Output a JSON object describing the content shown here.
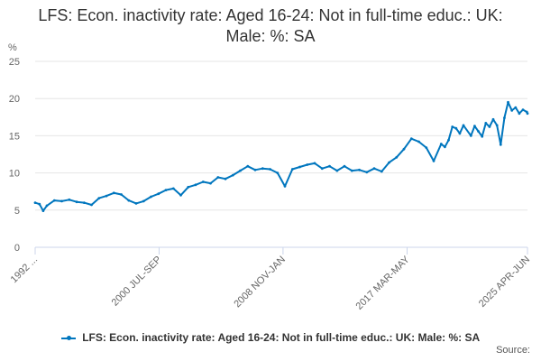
{
  "chart_data": {
    "type": "line",
    "title": "LFS: Econ. inactivity rate: Aged 16-24: Not in full-time educ.: UK: Male: %: SA",
    "ylabel": "%",
    "ylim": [
      0,
      25
    ],
    "y_ticks": [
      "0",
      "5",
      "10",
      "15",
      "20",
      "25"
    ],
    "x_tick_labels": [
      "1992 ...",
      "2000 JUL-SEP",
      "2008 NOV-JAN",
      "2017 MAR-MAY",
      "2025 APR-JUN"
    ],
    "grid": true,
    "legend_position": "bottom",
    "credits": "Source:",
    "series": [
      {
        "name": "LFS: Econ. inactivity rate: Aged 16-24: Not in full-time educ.: UK: Male: %: SA",
        "color": "#0076be",
        "x": [
          1992.21,
          1992.5,
          1992.75,
          1993.0,
          1993.5,
          1994.0,
          1994.5,
          1995.0,
          1995.5,
          1996.0,
          1996.5,
          1997.0,
          1997.5,
          1998.0,
          1998.5,
          1999.0,
          1999.5,
          2000.0,
          2000.5,
          2001.0,
          2001.5,
          2002.0,
          2002.5,
          2003.0,
          2003.5,
          2004.0,
          2004.5,
          2005.0,
          2005.5,
          2006.0,
          2006.5,
          2007.0,
          2007.5,
          2008.0,
          2008.5,
          2009.0,
          2009.5,
          2010.0,
          2010.5,
          2011.0,
          2011.5,
          2012.0,
          2012.5,
          2013.0,
          2013.5,
          2014.0,
          2014.5,
          2015.0,
          2015.5,
          2016.0,
          2016.5,
          2017.0,
          2017.5,
          2018.0,
          2018.5,
          2019.0,
          2019.5,
          2019.75,
          2020.0,
          2020.25,
          2020.5,
          2020.75,
          2021.0,
          2021.5,
          2021.75,
          2022.0,
          2022.25,
          2022.5,
          2022.75,
          2023.0,
          2023.25,
          2023.5,
          2023.75,
          2024.0,
          2024.25,
          2024.5,
          2024.75,
          2025.0,
          2025.25,
          2025.3
        ],
        "y": [
          6.0,
          5.8,
          4.9,
          5.6,
          6.3,
          6.2,
          6.4,
          6.1,
          6.0,
          5.7,
          6.6,
          6.9,
          7.3,
          7.1,
          6.3,
          5.9,
          6.2,
          6.8,
          7.2,
          7.7,
          7.9,
          7.0,
          8.1,
          8.4,
          8.8,
          8.6,
          9.4,
          9.2,
          9.7,
          10.3,
          10.9,
          10.4,
          10.6,
          10.5,
          10.0,
          8.2,
          10.5,
          10.8,
          11.1,
          11.3,
          10.6,
          10.9,
          10.3,
          10.9,
          10.3,
          10.4,
          10.1,
          10.6,
          10.2,
          11.4,
          12.1,
          13.2,
          14.6,
          14.2,
          13.4,
          11.6,
          13.9,
          13.5,
          14.4,
          16.2,
          16.0,
          15.3,
          16.4,
          15.0,
          16.3,
          15.6,
          14.9,
          16.7,
          16.2,
          17.2,
          16.4,
          13.8,
          17.4,
          19.5,
          18.4,
          18.8,
          18.0,
          18.5,
          18.2,
          18.0
        ]
      }
    ]
  }
}
